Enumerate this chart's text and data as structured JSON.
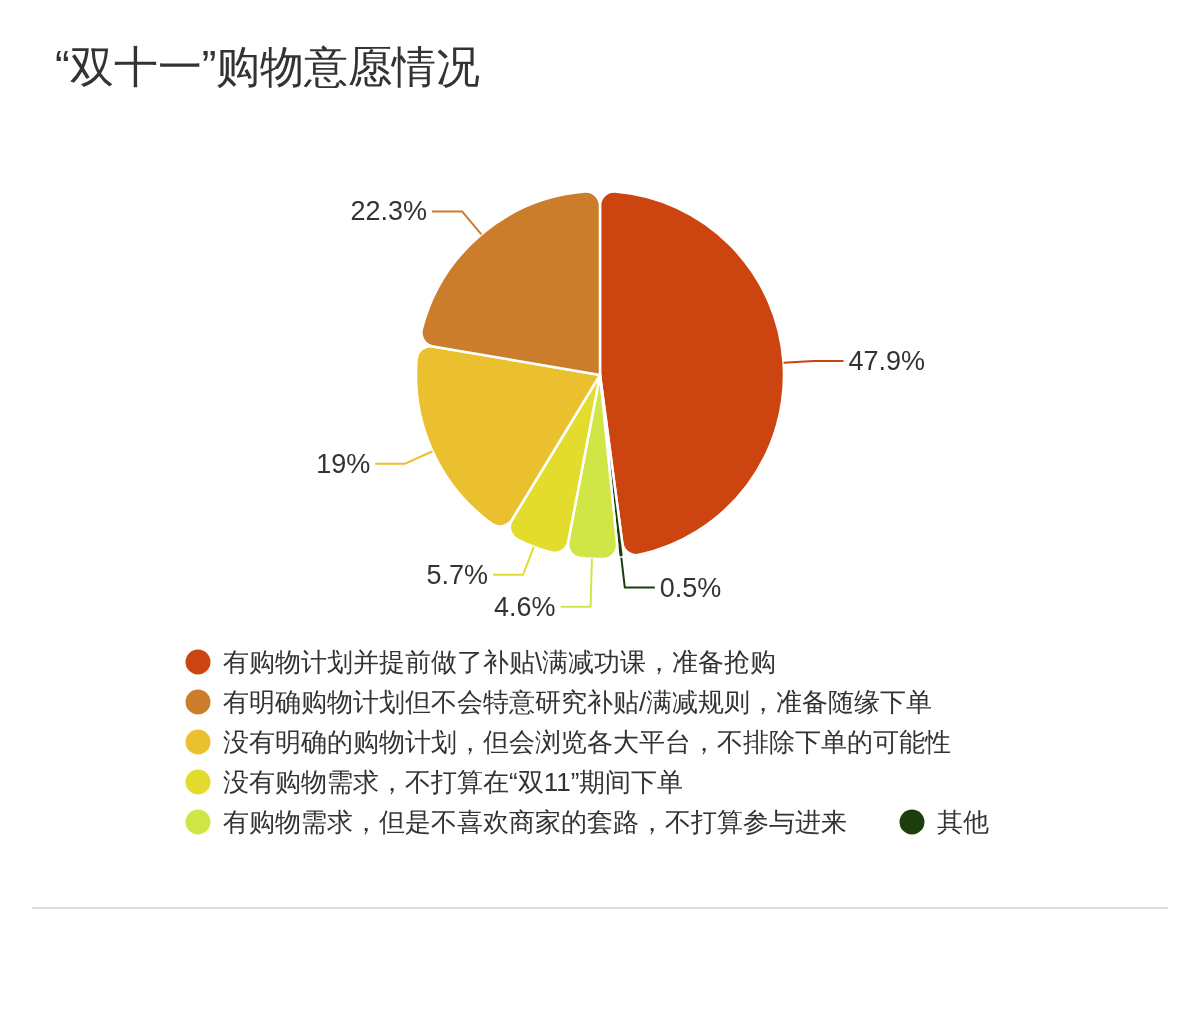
{
  "chart_data": {
    "type": "pie",
    "title": "“双十一”购物意愿情况",
    "categories": [
      "有购物计划并提前做了补贴\\满减功课，准备抢购",
      "有明确购物计划但不会特意研究补贴/满减规则，准备随缘下单",
      "没有明确的购物计划，但会浏览各大平台，不排除下单的可能性",
      "没有购物需求，不打算在“双11”期间下单",
      "有购物需求，但是不喜欢商家的套路，不打算参与进来",
      "其他"
    ],
    "values": [
      47.9,
      22.3,
      19,
      5.7,
      4.6,
      0.5
    ],
    "colors": [
      "#cc4511",
      "#cb7d2c",
      "#eac02e",
      "#e3dc2d",
      "#d0e647",
      "#1c3d0c"
    ],
    "value_labels": [
      "47.9%",
      "22.3%",
      "19%",
      "5.7%",
      "4.6%",
      "0.5%"
    ],
    "legend": "bottom"
  }
}
